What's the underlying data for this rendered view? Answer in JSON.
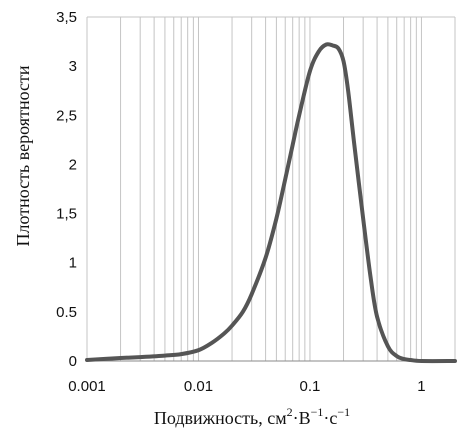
{
  "chart_data": {
    "type": "line",
    "xscale": "log",
    "xlim": [
      0.001,
      2
    ],
    "ylim": [
      0,
      3.5
    ],
    "grid": true,
    "xlabel": "Подвижность, см",
    "xlabel_sup1": "2",
    "xlabel_mid1": "·В",
    "xlabel_sup2": "−1",
    "xlabel_mid2": "·с",
    "xlabel_sup3": "−1",
    "ylabel": "Плотность вероятности",
    "yticks": [
      {
        "value": 0,
        "label": "0"
      },
      {
        "value": 0.5,
        "label": "0.5"
      },
      {
        "value": 1,
        "label": "1"
      },
      {
        "value": 1.5,
        "label": "1,5"
      },
      {
        "value": 2,
        "label": "2"
      },
      {
        "value": 2.5,
        "label": "2,5"
      },
      {
        "value": 3,
        "label": "3"
      },
      {
        "value": 3.5,
        "label": "3,5"
      }
    ],
    "xticks": [
      {
        "value": 0.001,
        "label": "0.001"
      },
      {
        "value": 0.01,
        "label": "0.01"
      },
      {
        "value": 0.1,
        "label": "0.1"
      },
      {
        "value": 1,
        "label": "1"
      }
    ],
    "series": [
      {
        "color": "#555555",
        "points": [
          [
            0.001,
            0.01
          ],
          [
            0.002,
            0.03
          ],
          [
            0.003,
            0.04
          ],
          [
            0.005,
            0.055
          ],
          [
            0.007,
            0.07
          ],
          [
            0.01,
            0.11
          ],
          [
            0.013,
            0.18
          ],
          [
            0.017,
            0.28
          ],
          [
            0.02,
            0.36
          ],
          [
            0.025,
            0.5
          ],
          [
            0.03,
            0.68
          ],
          [
            0.04,
            1.05
          ],
          [
            0.05,
            1.45
          ],
          [
            0.06,
            1.85
          ],
          [
            0.07,
            2.2
          ],
          [
            0.08,
            2.5
          ],
          [
            0.1,
            2.95
          ],
          [
            0.12,
            3.15
          ],
          [
            0.14,
            3.22
          ],
          [
            0.16,
            3.21
          ],
          [
            0.18,
            3.18
          ],
          [
            0.2,
            3.05
          ],
          [
            0.22,
            2.75
          ],
          [
            0.25,
            2.2
          ],
          [
            0.3,
            1.45
          ],
          [
            0.35,
            0.85
          ],
          [
            0.4,
            0.45
          ],
          [
            0.5,
            0.15
          ],
          [
            0.6,
            0.05
          ],
          [
            0.7,
            0.02
          ],
          [
            0.8,
            0.01
          ],
          [
            1,
            0.0
          ],
          [
            2,
            0.0
          ]
        ]
      }
    ]
  }
}
